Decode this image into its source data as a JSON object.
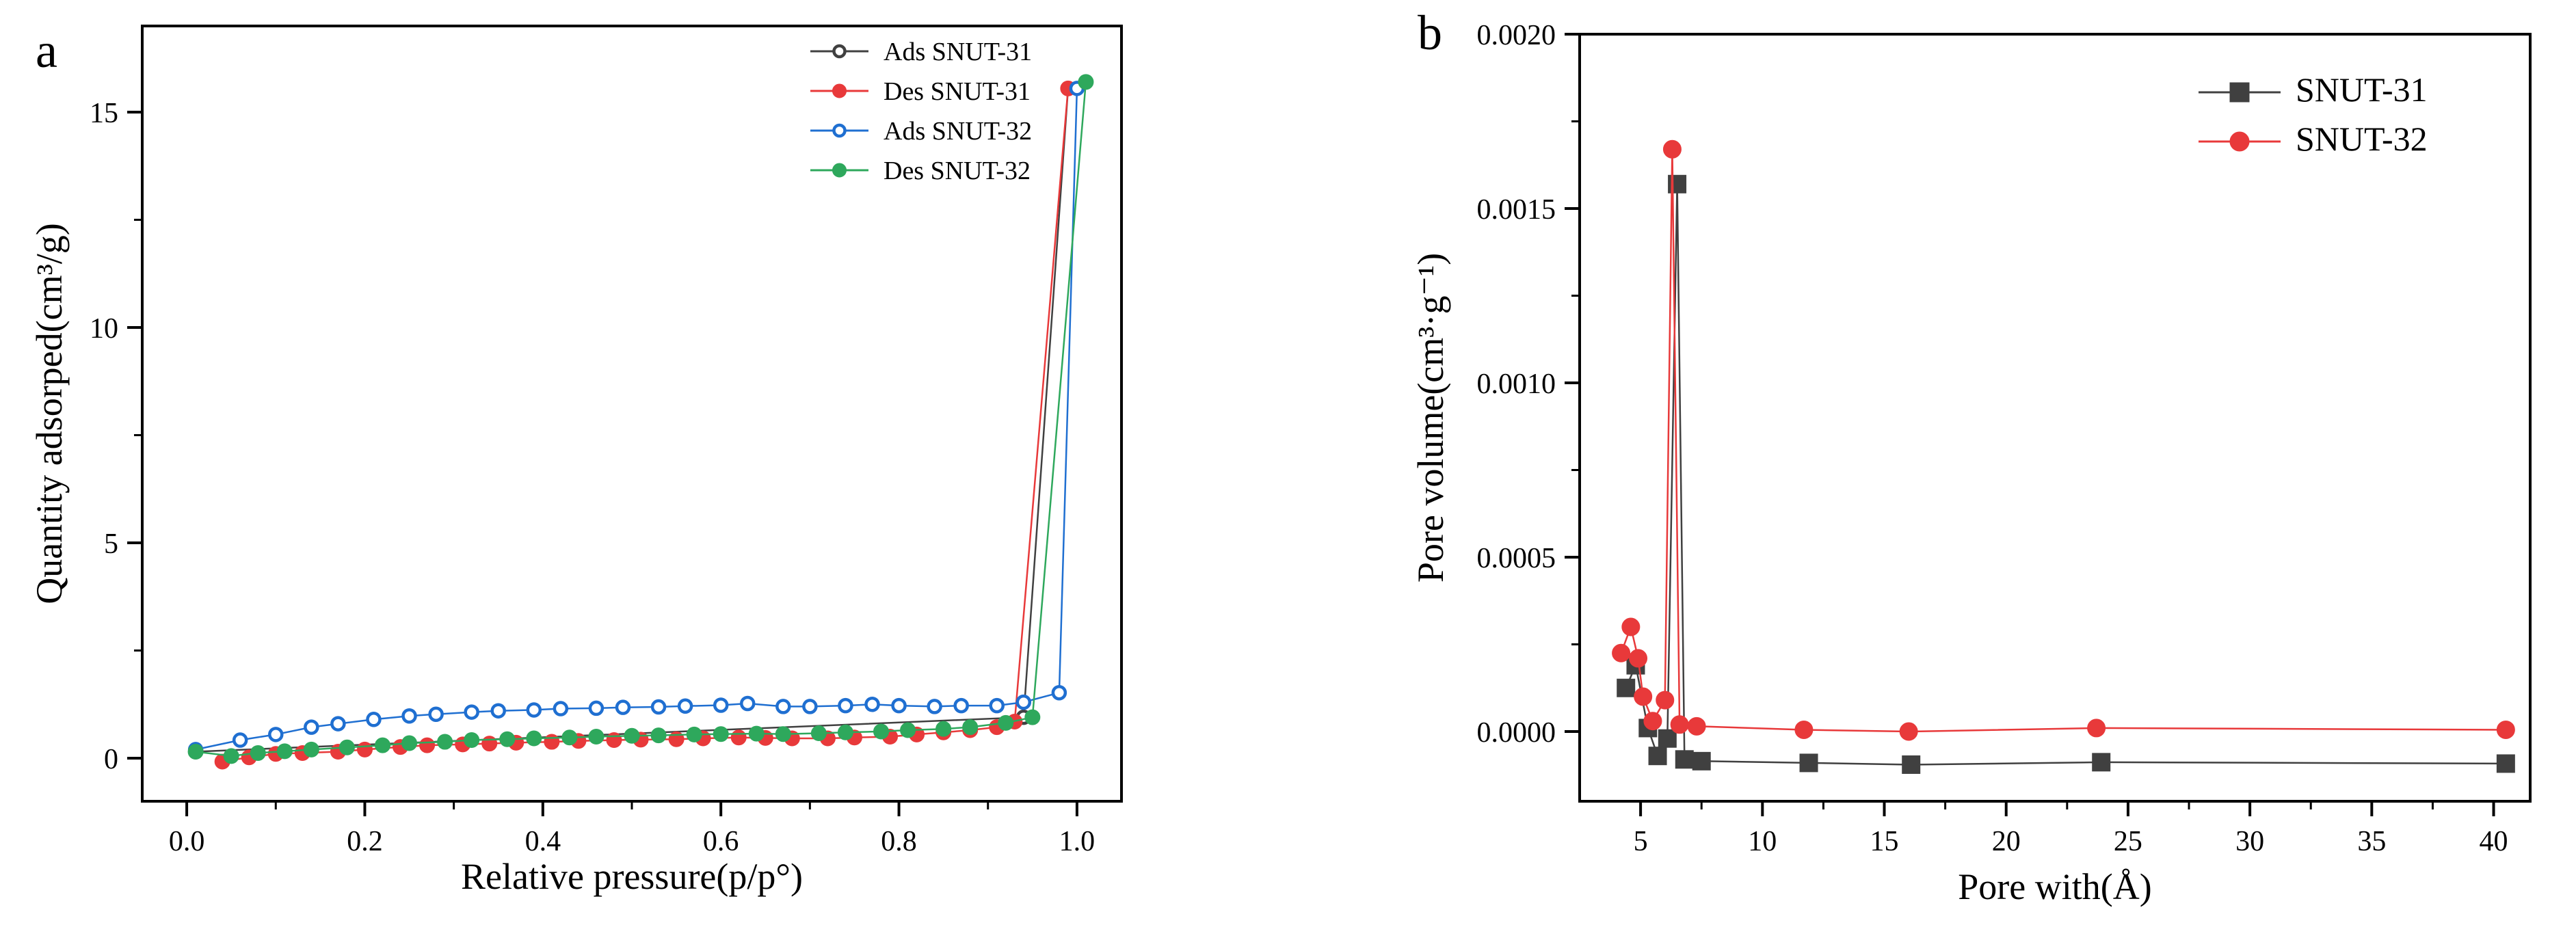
{
  "chart_data": [
    {
      "panel": "a",
      "type": "line",
      "xlabel": "Relative pressure(p/p°)",
      "ylabel": "Quantity adsorped(cm³/g)",
      "xlim": [
        -0.05,
        1.05
      ],
      "ylim": [
        -1.0,
        17.0
      ],
      "xticks": [
        0.0,
        0.2,
        0.4,
        0.6,
        0.8,
        1.0
      ],
      "xtick_labels": [
        "0.0",
        "0.2",
        "0.4",
        "0.6",
        "0.8",
        "1.0"
      ],
      "yticks": [
        0,
        5,
        10,
        15
      ],
      "ytick_labels": [
        "0",
        "5",
        "10",
        "15"
      ],
      "legend_position": "top-right",
      "series": [
        {
          "name": "Ads SNUT-31",
          "color": "#404040",
          "marker": "open-circle",
          "x": [
            0.01,
            0.94,
            0.99
          ],
          "y": [
            0.15,
            0.95,
            15.55
          ]
        },
        {
          "name": "Des SNUT-31",
          "color": "#e8393a",
          "marker": "filled-circle",
          "x": [
            0.04,
            0.07,
            0.1,
            0.13,
            0.17,
            0.2,
            0.24,
            0.27,
            0.31,
            0.34,
            0.37,
            0.41,
            0.44,
            0.48,
            0.51,
            0.55,
            0.58,
            0.62,
            0.65,
            0.68,
            0.72,
            0.75,
            0.79,
            0.82,
            0.85,
            0.88,
            0.91,
            0.93,
            0.99
          ],
          "y": [
            -0.08,
            0.02,
            0.1,
            0.12,
            0.15,
            0.2,
            0.26,
            0.3,
            0.32,
            0.34,
            0.36,
            0.38,
            0.4,
            0.42,
            0.43,
            0.44,
            0.46,
            0.48,
            0.47,
            0.46,
            0.46,
            0.48,
            0.5,
            0.55,
            0.6,
            0.65,
            0.72,
            0.85,
            15.55
          ]
        },
        {
          "name": "Ads SNUT-32",
          "color": "#1f6fd1",
          "marker": "open-circle",
          "x": [
            0.01,
            0.06,
            0.1,
            0.14,
            0.17,
            0.21,
            0.25,
            0.28,
            0.32,
            0.35,
            0.39,
            0.42,
            0.46,
            0.49,
            0.53,
            0.56,
            0.6,
            0.63,
            0.67,
            0.7,
            0.74,
            0.77,
            0.8,
            0.84,
            0.87,
            0.91,
            0.94,
            0.98,
            1.0
          ],
          "y": [
            0.2,
            0.42,
            0.55,
            0.72,
            0.8,
            0.9,
            0.98,
            1.02,
            1.07,
            1.1,
            1.12,
            1.15,
            1.16,
            1.18,
            1.19,
            1.21,
            1.23,
            1.27,
            1.2,
            1.2,
            1.22,
            1.25,
            1.22,
            1.2,
            1.22,
            1.22,
            1.3,
            1.52,
            15.55
          ]
        },
        {
          "name": "Des SNUT-32",
          "color": "#2ea85c",
          "marker": "filled-circle",
          "x": [
            0.01,
            0.05,
            0.08,
            0.11,
            0.14,
            0.18,
            0.22,
            0.25,
            0.29,
            0.32,
            0.36,
            0.39,
            0.43,
            0.46,
            0.5,
            0.53,
            0.57,
            0.6,
            0.64,
            0.67,
            0.71,
            0.74,
            0.78,
            0.81,
            0.85,
            0.88,
            0.92,
            0.95,
            1.01
          ],
          "y": [
            0.15,
            0.05,
            0.12,
            0.16,
            0.2,
            0.25,
            0.3,
            0.35,
            0.38,
            0.42,
            0.44,
            0.46,
            0.48,
            0.5,
            0.52,
            0.53,
            0.55,
            0.56,
            0.57,
            0.56,
            0.58,
            0.6,
            0.62,
            0.65,
            0.68,
            0.72,
            0.82,
            0.95,
            15.7
          ]
        }
      ]
    },
    {
      "panel": "b",
      "type": "line",
      "xlabel": "Pore with(Å)",
      "ylabel": "Pore volume(cm³·g⁻¹)",
      "xlim": [
        2.5,
        41.5
      ],
      "ylim": [
        -0.0002,
        0.002
      ],
      "xticks": [
        5,
        10,
        15,
        20,
        25,
        30,
        35,
        40
      ],
      "xtick_labels": [
        "5",
        "10",
        "15",
        "20",
        "25",
        "30",
        "35",
        "40"
      ],
      "yticks": [
        0.0,
        0.0005,
        0.001,
        0.0015,
        0.002
      ],
      "ytick_labels": [
        "0.0000",
        "0.0005",
        "0.0010",
        "0.0015",
        "0.0020"
      ],
      "legend_position": "top-right",
      "series": [
        {
          "name": "SNUT-31",
          "color": "#404040",
          "marker": "filled-square",
          "x": [
            4.4,
            4.8,
            5.3,
            5.7,
            6.1,
            6.5,
            6.8,
            7.5,
            11.9,
            16.1,
            23.9,
            40.5
          ],
          "y": [
            0.000125,
            0.00019,
            1e-05,
            -7e-05,
            -2e-05,
            0.00157,
            -8e-05,
            -8.5e-05,
            -9e-05,
            -9.5e-05,
            -8.8e-05,
            -9.2e-05
          ]
        },
        {
          "name": "SNUT-32",
          "color": "#e8393a",
          "marker": "filled-circle",
          "x": [
            4.2,
            4.6,
            4.9,
            5.1,
            5.5,
            6.0,
            6.3,
            6.6,
            7.3,
            11.7,
            16.0,
            23.7,
            40.5
          ],
          "y": [
            0.000225,
            0.0003,
            0.00021,
            0.0001,
            3e-05,
            9e-05,
            0.00167,
            2e-05,
            1.5e-05,
            5e-06,
            0.0,
            1e-05,
            5e-06
          ]
        }
      ]
    }
  ]
}
